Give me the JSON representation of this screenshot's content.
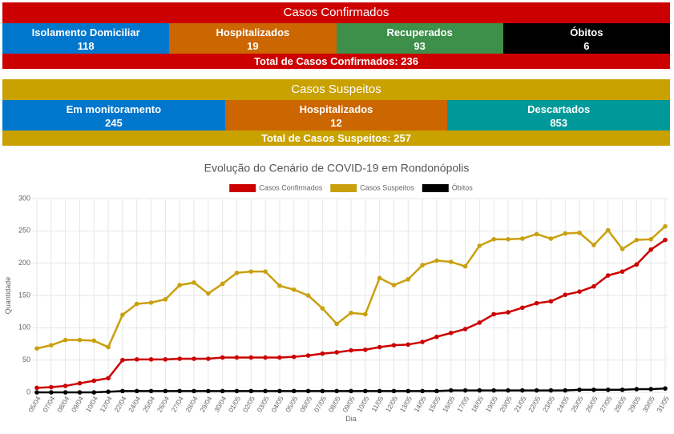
{
  "confirmed": {
    "title": "Casos Confirmados",
    "cells": [
      {
        "label": "Isolamento Domiciliar",
        "value": "118"
      },
      {
        "label": "Hospitalizados",
        "value": "19"
      },
      {
        "label": "Recuperados",
        "value": "93"
      },
      {
        "label": "Óbitos",
        "value": "6"
      }
    ],
    "total": "Total de Casos Confirmados: 236"
  },
  "suspected": {
    "title": "Casos Suspeitos",
    "cells": [
      {
        "label": "Em monitoramento",
        "value": "245"
      },
      {
        "label": "Hospitalizados",
        "value": "12"
      },
      {
        "label": "Descartados",
        "value": "853"
      }
    ],
    "total": "Total de Casos Suspeitos: 257"
  },
  "chart_data": {
    "type": "line",
    "title": "Evolução do Cenário de COVID-19 em Rondonópolis",
    "x_label": "Dia",
    "y_label": "Quantidade",
    "categories": [
      "05/04",
      "07/04",
      "08/04",
      "09/04",
      "10/04",
      "12/04",
      "22/04",
      "24/04",
      "25/04",
      "26/04",
      "27/04",
      "28/04",
      "29/04",
      "30/04",
      "01/05",
      "02/05",
      "03/05",
      "04/05",
      "05/05",
      "06/05",
      "07/05",
      "08/05",
      "09/05",
      "10/05",
      "11/05",
      "12/05",
      "13/05",
      "14/05",
      "15/05",
      "16/05",
      "17/05",
      "18/05",
      "19/05",
      "20/05",
      "21/05",
      "22/05",
      "23/05",
      "24/05",
      "25/05",
      "26/05",
      "27/05",
      "28/05",
      "29/05",
      "30/05",
      "31/05"
    ],
    "series": [
      {
        "name": "Casos Confirmados",
        "color": "#cc0000",
        "values": [
          7,
          8,
          10,
          14,
          18,
          22,
          50,
          51,
          51,
          51,
          52,
          52,
          52,
          54,
          54,
          54,
          54,
          54,
          55,
          57,
          60,
          62,
          65,
          66,
          70,
          73,
          74,
          78,
          86,
          92,
          98,
          108,
          121,
          124,
          131,
          138,
          141,
          151,
          156,
          164,
          181,
          187,
          198,
          221,
          236
        ]
      },
      {
        "name": "Casos Suspeitos",
        "color": "#c9a00e",
        "values": [
          68,
          73,
          81,
          81,
          80,
          70,
          120,
          137,
          139,
          144,
          166,
          170,
          153,
          168,
          185,
          187,
          187,
          165,
          159,
          150,
          130,
          106,
          123,
          121,
          177,
          166,
          175,
          197,
          204,
          202,
          195,
          227,
          237,
          237,
          238,
          245,
          238,
          246,
          247,
          228,
          251,
          222,
          236,
          237,
          257
        ]
      },
      {
        "name": "Óbitos",
        "color": "#000000",
        "values": [
          0,
          0,
          0,
          0,
          0,
          1,
          2,
          2,
          2,
          2,
          2,
          2,
          2,
          2,
          2,
          2,
          2,
          2,
          2,
          2,
          2,
          2,
          2,
          2,
          2,
          2,
          2,
          2,
          2,
          3,
          3,
          3,
          3,
          3,
          3,
          3,
          3,
          3,
          4,
          4,
          4,
          4,
          5,
          5,
          6
        ]
      }
    ],
    "ylim": [
      0,
      300
    ],
    "yticks": [
      0,
      50,
      100,
      150,
      200,
      250,
      300
    ],
    "grid": true,
    "legend": "top"
  }
}
